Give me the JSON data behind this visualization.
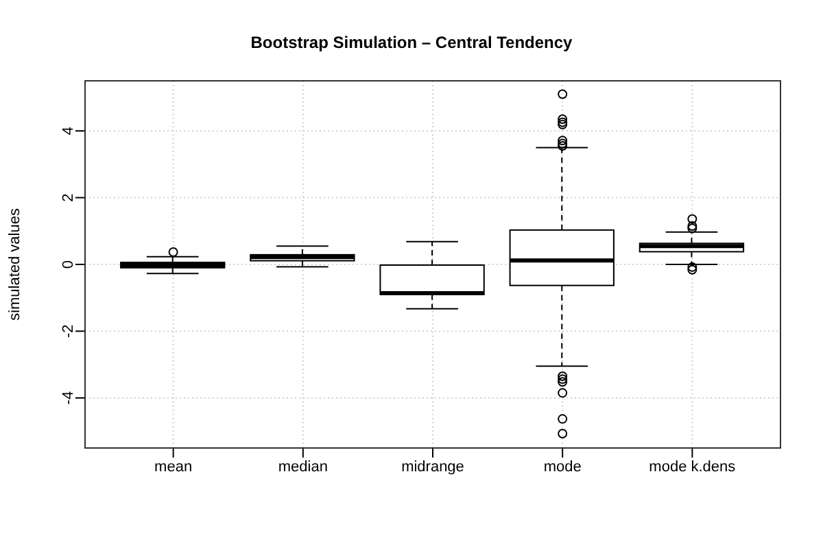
{
  "chart_data": {
    "type": "box",
    "title": "Bootstrap Simulation – Central Tendency",
    "ylabel": "simulated values",
    "categories": [
      "mean",
      "median",
      "midrange",
      "mode",
      "mode k.dens"
    ],
    "boxes": [
      {
        "low": -0.27,
        "q1": -0.1,
        "median": -0.02,
        "q3": 0.06,
        "high": 0.23,
        "outliers": [
          0.37
        ]
      },
      {
        "low": -0.07,
        "q1": 0.11,
        "median": 0.22,
        "q3": 0.29,
        "high": 0.55
      },
      {
        "low": -1.33,
        "q1": -0.9,
        "median": -0.86,
        "q3": -0.02,
        "high": 0.68
      },
      {
        "low": -3.05,
        "q1": -0.63,
        "median": 0.12,
        "q3": 1.03,
        "high": 3.5,
        "outliers": [
          5.1,
          4.35,
          4.26,
          4.19,
          3.71,
          3.62,
          3.55,
          -3.35,
          -3.44,
          -3.52,
          -3.85,
          -4.63,
          -5.07
        ]
      },
      {
        "low": 0.0,
        "q1": 0.38,
        "median": 0.55,
        "q3": 0.63,
        "high": 0.97,
        "outliers": [
          1.36,
          1.15,
          1.08,
          -0.08,
          -0.16
        ]
      }
    ],
    "color": "#000000",
    "ylim": [
      -5.5,
      5.5
    ],
    "yticks": [
      -4,
      -2,
      0,
      2,
      4
    ],
    "grid": true,
    "line_style": "dashed"
  }
}
